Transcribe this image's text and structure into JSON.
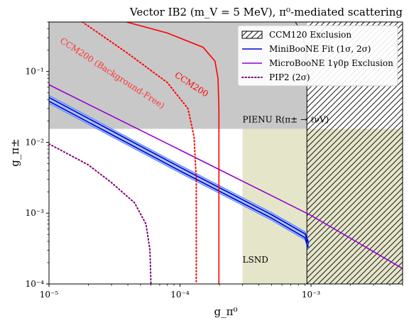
{
  "chart_data": {
    "type": "line",
    "title": "Vector IB2 (m_V = 5 MeV), π⁰-mediated scattering",
    "xlabel": "g_π⁰",
    "ylabel": "g_π±",
    "xscale": "log",
    "yscale": "log",
    "xlim": [
      1e-05,
      0.005
    ],
    "ylim": [
      0.0001,
      0.5
    ],
    "xticks": [
      {
        "value": 1e-05,
        "label": "10⁻⁵"
      },
      {
        "value": 0.0001,
        "label": "10⁻⁴"
      },
      {
        "value": 0.001,
        "label": "10⁻³"
      }
    ],
    "yticks": [
      {
        "value": 0.0001,
        "label": "10⁻⁴"
      },
      {
        "value": 0.001,
        "label": "10⁻³"
      },
      {
        "value": 0.01,
        "label": "10⁻²"
      },
      {
        "value": 0.1,
        "label": "10⁻¹"
      }
    ],
    "regions": [
      {
        "name": "PIENU",
        "label": "PIENU R(π± → ℓνV)",
        "color": "#c8c8c8",
        "y_min": 0.0155,
        "x_max": 0.00093
      },
      {
        "name": "PIENU diagonal",
        "color": "#c8c8c8",
        "x": [
          1e-05,
          1e-05,
          0.00025,
          0.00045,
          0.0009,
          0.0009
        ],
        "y": [
          0.5,
          0.0155,
          0.0155,
          0.025,
          0.1,
          0.5
        ]
      },
      {
        "name": "LSND",
        "label": "LSND",
        "color": "#e5e5ca",
        "x_min": 0.0003,
        "y_max": 0.0155
      },
      {
        "name": "CCM120 Exclusion",
        "label": "CCM120 Exclusion",
        "hatch": true,
        "x_min": 0.00093,
        "y_min": 0.0001,
        "y_max": 0.5
      }
    ],
    "series": [
      {
        "name": "CCM120 Exclusion",
        "color": "#000000",
        "style": "solid",
        "x": [
          0.00093,
          0.00093,
          0.00089,
          0.00083,
          0.00076
        ],
        "y": [
          0.0001,
          0.1,
          0.25,
          0.38,
          0.5
        ]
      },
      {
        "name": "MiniBooNE Fit (1σ, 2σ)",
        "color": "#0000cc",
        "style": "solid",
        "band_color": "#a9c4ff",
        "x": [
          1e-05,
          0.0001,
          0.0005,
          0.0009,
          0.00095
        ],
        "y": [
          0.038,
          0.00395,
          0.00085,
          0.00045,
          0.00033
        ]
      },
      {
        "name": "MiniBooNE Fit lower",
        "color": "#0000cc",
        "style": "solid",
        "x": [
          1e-05,
          0.0001,
          0.0005,
          0.0009,
          0.00096
        ],
        "y": [
          0.043,
          0.00445,
          0.00095,
          0.00051,
          0.00037
        ]
      },
      {
        "name": "MicroBooNE 1γ0p Exclusion",
        "color": "#9400d3",
        "style": "solid",
        "x": [
          1e-05,
          0.0001,
          0.001,
          0.005
        ],
        "y": [
          0.065,
          0.0078,
          0.00093,
          0.000165
        ]
      },
      {
        "name": "PIP2 (2σ)",
        "color": "#800080",
        "style": "dotted",
        "x": [
          1e-05,
          2e-05,
          3e-05,
          4.5e-05,
          5.5e-05,
          5.9e-05,
          6e-05
        ],
        "y": [
          0.0095,
          0.0048,
          0.0027,
          0.0014,
          0.0007,
          0.0003,
          0.0001
        ]
      },
      {
        "name": "CCM200",
        "label": "CCM200",
        "color": "#ff0000",
        "style": "solid",
        "x": [
          3.9e-05,
          8e-05,
          0.00015,
          0.000185,
          0.000195,
          0.000198,
          0.000198
        ],
        "y": [
          0.5,
          0.35,
          0.22,
          0.14,
          0.08,
          0.03,
          0.0001
        ]
      },
      {
        "name": "CCM200 (Background-Free)",
        "label": "CCM200 (Background-Free)",
        "color": "#ff0000",
        "style": "dotted",
        "x": [
          1.8e-05,
          4e-05,
          8e-05,
          0.000115,
          0.000128,
          0.000133,
          0.000133
        ],
        "y": [
          0.5,
          0.18,
          0.07,
          0.03,
          0.012,
          0.003,
          0.0001
        ]
      }
    ],
    "legend": {
      "placement": "upper-right",
      "entries": [
        {
          "label": "CCM120 Exclusion",
          "kind": "hatch"
        },
        {
          "label": "MiniBooNE Fit (1σ, 2σ)",
          "kind": "line",
          "color": "#0000cc"
        },
        {
          "label": "MicroBooNE 1γ0p Exclusion",
          "kind": "line",
          "color": "#9400d3"
        },
        {
          "label": "PIP2 (2σ)",
          "kind": "dotted",
          "color": "#800080"
        }
      ]
    },
    "annotations": [
      {
        "text": "CCM200 (Background-Free)",
        "color": "#ff3333",
        "x": 1.2e-05,
        "y": 0.26
      },
      {
        "text": "CCM200",
        "color": "#ff0000",
        "x": 9e-05,
        "y": 0.085
      },
      {
        "text": "PIENU R(π± → ℓνV)",
        "color": "#000000",
        "x": 0.0003,
        "y": 0.019
      },
      {
        "text": "LSND",
        "color": "#000000",
        "x": 0.0003,
        "y": 0.0002
      }
    ]
  }
}
